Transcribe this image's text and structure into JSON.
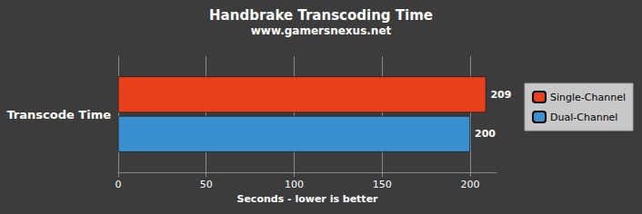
{
  "chart_data": {
    "type": "bar",
    "orientation": "horizontal",
    "title": "Handbrake Transcoding Time",
    "subtitle": "www.gamersnexus.net",
    "xlabel": "Seconds - lower is better",
    "categories": [
      "Transcode Time"
    ],
    "series": [
      {
        "name": "Single-Channel",
        "color": "#e8401c",
        "values": [
          209
        ]
      },
      {
        "name": "Dual-Channel",
        "color": "#3a8fce",
        "values": [
          200
        ]
      }
    ],
    "xlim": [
      0,
      215
    ],
    "xticks": [
      0,
      50,
      100,
      150,
      200
    ],
    "grid": true,
    "data_labels": true,
    "legend": "right"
  }
}
